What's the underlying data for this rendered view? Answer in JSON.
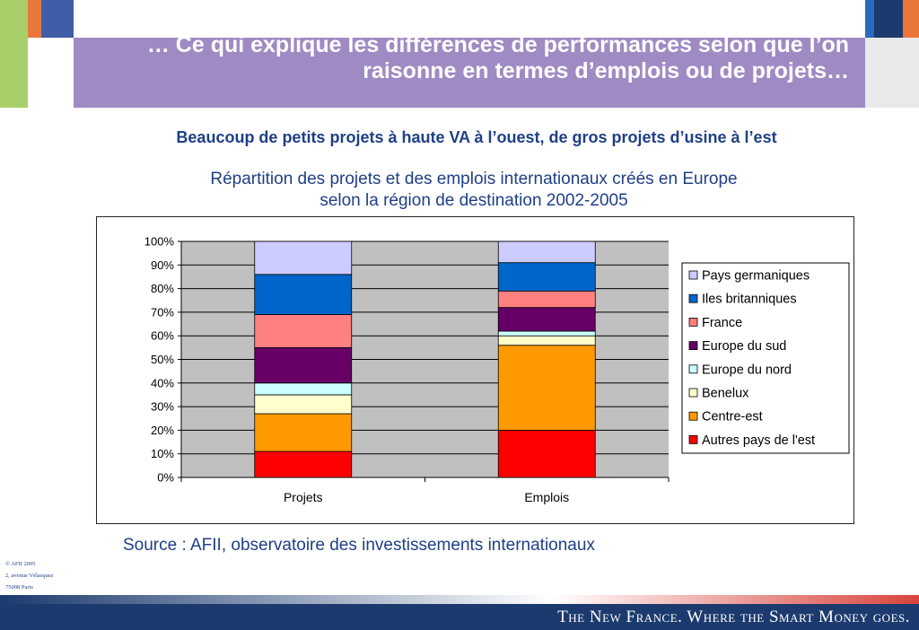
{
  "slide": {
    "title": "… Ce qui explique les différences de performances selon que l’on raisonne en termes d’emplois ou de projets…",
    "subtitle": "Beaucoup de petits projets à haute VA à l’ouest, de gros projets d’usine à l’est",
    "chart_title_line1": "Répartition des projets et des emplois internationaux créés en Europe",
    "chart_title_line2": "selon la région de destination 2002-2005",
    "source": "Source : AFII, observatoire des investissements internationaux",
    "address": [
      "© AFII 2005",
      "2, avenue Vélasquez",
      "75008 Paris"
    ],
    "tagline": "The New France. Where the Smart Money goes."
  },
  "colors": {
    "banner": "#a08ac3",
    "text_blue": "#1f3f86",
    "footer": "#1c3a6e",
    "plot_bg": "#c0c0c0"
  },
  "chart_data": {
    "type": "bar",
    "stacked": true,
    "percent": true,
    "categories": [
      "Projets",
      "Emplois"
    ],
    "yticks": [
      "0%",
      "10%",
      "20%",
      "30%",
      "40%",
      "50%",
      "60%",
      "70%",
      "80%",
      "90%",
      "100%"
    ],
    "ylim": [
      0,
      100
    ],
    "grid": true,
    "legend_position": "right",
    "series": [
      {
        "name": "Autres pays de l'est",
        "color": "#ff0000",
        "values": [
          11,
          20
        ]
      },
      {
        "name": "Centre-est",
        "color": "#ff9900",
        "values": [
          16,
          36
        ]
      },
      {
        "name": "Benelux",
        "color": "#ffffcc",
        "values": [
          8,
          4
        ]
      },
      {
        "name": "Europe du nord",
        "color": "#ccffff",
        "values": [
          5,
          2
        ]
      },
      {
        "name": "Europe du sud",
        "color": "#660066",
        "values": [
          15,
          10
        ]
      },
      {
        "name": "France",
        "color": "#ff8080",
        "values": [
          14,
          7
        ]
      },
      {
        "name": "Iles britanniques",
        "color": "#0066cc",
        "values": [
          17,
          12
        ]
      },
      {
        "name": "Pays germaniques",
        "color": "#ccccff",
        "values": [
          14,
          9
        ]
      }
    ]
  }
}
